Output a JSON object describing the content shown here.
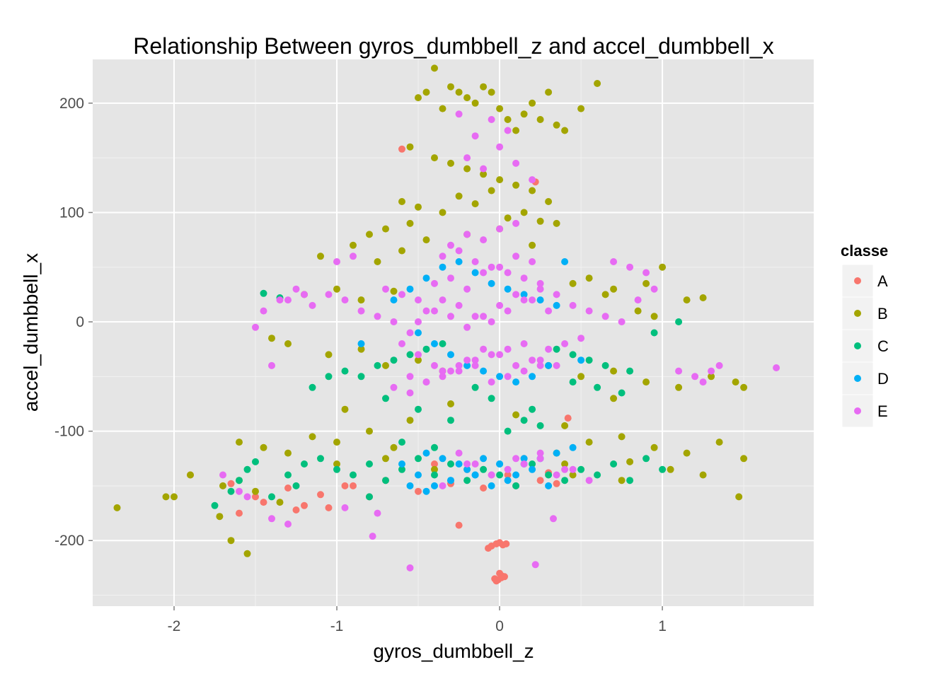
{
  "chart_data": {
    "type": "scatter",
    "title": "Relationship Between gyros_dumbbell_z and accel_dumbbell_x",
    "xlabel": "gyros_dumbbell_z",
    "ylabel": "accel_dumbbell_x",
    "xlim": [
      -2.5,
      1.93
    ],
    "ylim": [
      -260,
      240
    ],
    "x_ticks": [
      -2,
      -1,
      0,
      1
    ],
    "x_tick_labels": [
      "-2",
      "-1",
      "0",
      "1"
    ],
    "y_ticks": [
      -200,
      -100,
      0,
      100,
      200
    ],
    "y_tick_labels": [
      "-200",
      "-100",
      "0",
      "100",
      "200"
    ],
    "grid": true,
    "legend": {
      "title": "classe",
      "position": "right"
    },
    "colors": {
      "panel": "#e5e5e5",
      "grid_major": "#ffffff",
      "grid_minor": "#f2f2f2",
      "legend_key": "#f2f2f2"
    },
    "series": [
      {
        "name": "A",
        "color": "#F8766D",
        "x": [
          -0.05,
          -0.02,
          0.0,
          0.02,
          0.04,
          -0.07,
          0.01,
          -0.03,
          0.03,
          -0.01,
          0.0,
          -0.02,
          0.01,
          -0.25,
          0.22,
          -0.6,
          -1.05,
          -1.9,
          -1.65,
          -1.5,
          -1.3,
          -1.1,
          -0.9,
          -0.7,
          -0.5,
          -0.3,
          -0.1,
          0.1,
          0.25,
          0.35,
          0.42,
          -0.4,
          -0.2,
          0.05,
          0.15,
          0.3,
          -0.8,
          -1.25,
          -1.45,
          -1.6,
          -1.2,
          -0.95
        ],
        "y": [
          -205,
          -203,
          -202,
          -204,
          -203,
          -207,
          -232,
          -235,
          -233,
          -236,
          -230,
          -237,
          -234,
          -186,
          128,
          158,
          -170,
          -140,
          -148,
          -160,
          -152,
          -158,
          -150,
          -145,
          -155,
          -148,
          -152,
          -150,
          -145,
          -148,
          -88,
          -130,
          -135,
          -140,
          -125,
          -138,
          -160,
          -172,
          -165,
          -175,
          -168,
          -150
        ]
      },
      {
        "name": "B",
        "color": "#A3A500",
        "x": [
          -0.5,
          -0.45,
          -0.4,
          -0.35,
          -0.3,
          -0.25,
          -0.2,
          -0.15,
          -0.1,
          -0.05,
          0.0,
          0.05,
          0.1,
          0.15,
          0.2,
          0.25,
          0.3,
          0.35,
          0.4,
          0.5,
          0.6,
          -0.55,
          -0.4,
          -0.3,
          -0.2,
          -0.1,
          0.0,
          0.1,
          0.2,
          0.3,
          -0.6,
          -0.5,
          -0.35,
          -0.25,
          -0.15,
          -0.05,
          0.05,
          0.15,
          0.25,
          -0.8,
          -0.7,
          -0.55,
          -0.45,
          -0.2,
          0.0,
          0.2,
          0.35,
          -1.1,
          -0.9,
          -0.75,
          -0.6,
          0.55,
          0.7,
          0.9,
          1.0,
          1.15,
          1.25,
          -1.4,
          -1.2,
          -1.0,
          -0.85,
          -0.65,
          0.45,
          0.65,
          0.85,
          0.95,
          -1.3,
          -1.05,
          -0.85,
          -0.7,
          -0.5,
          -0.35,
          0.3,
          0.5,
          0.7,
          0.9,
          1.1,
          1.3,
          1.45,
          1.5,
          -1.6,
          -1.45,
          -1.3,
          -1.15,
          -1.0,
          -0.8,
          -0.65,
          0.35,
          0.55,
          0.75,
          0.95,
          1.15,
          1.35,
          -2.35,
          -2.0,
          -1.9,
          -1.7,
          -1.6,
          -1.5,
          -1.35,
          0.4,
          0.8,
          1.05,
          1.25,
          1.5,
          -0.95,
          -0.55,
          -0.3,
          0.1,
          0.4,
          0.7,
          -1.0,
          -0.7,
          -0.4,
          0.45,
          0.75,
          -1.65,
          -1.72,
          -2.05,
          -1.55,
          1.47
        ],
        "y": [
          205,
          210,
          232,
          195,
          215,
          210,
          205,
          200,
          215,
          210,
          195,
          185,
          175,
          190,
          200,
          185,
          210,
          180,
          175,
          195,
          218,
          160,
          150,
          145,
          140,
          135,
          130,
          125,
          120,
          110,
          110,
          105,
          100,
          115,
          108,
          120,
          95,
          100,
          92,
          80,
          85,
          90,
          75,
          80,
          85,
          70,
          90,
          60,
          70,
          55,
          65,
          40,
          30,
          35,
          50,
          20,
          22,
          -15,
          25,
          30,
          20,
          28,
          35,
          25,
          10,
          5,
          -20,
          -30,
          -25,
          -40,
          -35,
          -45,
          -40,
          -50,
          -45,
          -55,
          -60,
          -50,
          -55,
          -60,
          -110,
          -115,
          -120,
          -105,
          -110,
          -100,
          -115,
          -120,
          -110,
          -105,
          -115,
          -120,
          -110,
          -170,
          -160,
          -140,
          -150,
          -145,
          -155,
          -165,
          -130,
          -128,
          -135,
          -140,
          -125,
          -80,
          -90,
          -75,
          -85,
          -95,
          -70,
          -130,
          -125,
          -135,
          -140,
          -145,
          -200,
          -178,
          -160,
          -212,
          -160
        ]
      },
      {
        "name": "C",
        "color": "#00BF7D",
        "x": [
          -1.45,
          -1.35,
          -1.5,
          -1.55,
          -1.6,
          -1.4,
          -1.3,
          -1.2,
          -1.1,
          -1.0,
          -0.9,
          -0.8,
          -0.7,
          -0.6,
          -0.5,
          -0.4,
          -0.3,
          -0.2,
          -0.1,
          0.0,
          0.1,
          0.2,
          0.3,
          0.4,
          0.5,
          0.6,
          0.7,
          0.8,
          0.9,
          1.0,
          -0.95,
          -0.85,
          -0.75,
          -0.65,
          -0.55,
          -0.45,
          -0.35,
          0.35,
          0.45,
          0.55,
          0.65,
          0.8,
          0.95,
          1.1,
          -1.15,
          -1.05,
          -0.7,
          -0.5,
          -0.3,
          0.25,
          0.45,
          0.6,
          0.75,
          -1.75,
          -1.65,
          -1.25,
          -0.8,
          0.05,
          0.15,
          0.2,
          -0.15,
          -0.05,
          -0.6,
          -0.4
        ],
        "y": [
          26,
          22,
          -128,
          -135,
          -145,
          -160,
          -140,
          -130,
          -125,
          -135,
          -140,
          -130,
          -145,
          -135,
          -125,
          -140,
          -130,
          -145,
          -135,
          -140,
          -150,
          -130,
          -140,
          -145,
          -135,
          -140,
          -130,
          -145,
          -125,
          -135,
          -45,
          -50,
          -40,
          -35,
          -30,
          -25,
          -20,
          -25,
          -30,
          -35,
          -40,
          -45,
          -10,
          0,
          -60,
          -50,
          -70,
          -80,
          -90,
          -95,
          -55,
          -60,
          -65,
          -168,
          -155,
          -150,
          -160,
          -100,
          -90,
          -80,
          -60,
          -70,
          -110,
          -115
        ]
      },
      {
        "name": "D",
        "color": "#00B0F6",
        "x": [
          -0.55,
          -0.45,
          -0.35,
          -0.25,
          -0.15,
          -0.05,
          0.05,
          0.15,
          0.25,
          0.35,
          -0.5,
          -0.4,
          -0.3,
          -0.2,
          -0.1,
          0.0,
          0.1,
          0.2,
          0.3,
          -0.6,
          -0.5,
          -0.4,
          -0.3,
          -0.2,
          -0.1,
          0.0,
          0.1,
          0.2,
          -0.45,
          -0.35,
          -0.25,
          -0.15,
          -0.05,
          0.05,
          0.15,
          0.25,
          0.35,
          0.45,
          -0.55,
          -0.45,
          -0.3,
          -0.15,
          0.0,
          0.15,
          0.3,
          -0.65,
          0.4,
          -0.85,
          0.5
        ],
        "y": [
          30,
          40,
          50,
          55,
          45,
          35,
          30,
          25,
          20,
          15,
          -10,
          -20,
          -30,
          -40,
          -45,
          -50,
          -55,
          -50,
          -40,
          -130,
          -140,
          -150,
          -145,
          -135,
          -125,
          -130,
          -140,
          -135,
          -120,
          -125,
          -130,
          -140,
          -150,
          -145,
          -130,
          -125,
          -120,
          -115,
          -150,
          -155,
          -145,
          -140,
          -130,
          -125,
          -150,
          20,
          55,
          -20,
          -35
        ]
      },
      {
        "name": "E",
        "color": "#E76BF3",
        "x": [
          -1.45,
          -1.35,
          -1.25,
          -1.15,
          -1.05,
          -0.95,
          -0.85,
          -0.75,
          -0.65,
          -0.55,
          -0.45,
          -0.35,
          -0.25,
          -0.15,
          -0.05,
          0.05,
          0.15,
          0.25,
          0.35,
          0.45,
          0.55,
          0.65,
          0.75,
          0.85,
          0.95,
          -0.6,
          -0.5,
          -0.4,
          -0.3,
          -0.2,
          -0.1,
          0.0,
          0.1,
          0.2,
          0.3,
          0.4,
          0.5,
          -0.55,
          -0.45,
          -0.35,
          -0.25,
          -0.15,
          -0.05,
          0.05,
          0.15,
          0.25,
          0.35,
          -0.5,
          -0.4,
          -0.3,
          -0.2,
          -0.1,
          0.0,
          0.1,
          0.2,
          0.3,
          -0.7,
          -0.6,
          -0.5,
          -0.4,
          -0.3,
          -0.2,
          -0.1,
          0.0,
          0.1,
          0.2,
          -0.65,
          -0.55,
          -0.45,
          -0.35,
          -0.25,
          -0.15,
          -0.05,
          0.05,
          0.15,
          0.25,
          -0.3,
          -0.2,
          -0.1,
          0.0,
          0.1,
          -0.35,
          -0.25,
          -0.15,
          -0.05,
          0.05,
          0.15,
          0.25,
          -0.25,
          -0.15,
          -0.05,
          0.05,
          -0.2,
          -0.1,
          0.0,
          0.1,
          0.2,
          -0.25,
          -0.15,
          -0.05,
          0.05,
          0.15,
          0.25,
          0.35,
          0.45,
          0.55,
          -0.35,
          -0.2,
          -0.05,
          0.1,
          0.25,
          0.4,
          1.2,
          1.3,
          1.35,
          1.25,
          1.1,
          1.7,
          0.9,
          0.8,
          0.7,
          -1.5,
          -1.4,
          -1.3,
          -1.2,
          -1.0,
          -0.9,
          -0.95,
          -0.75,
          -1.7,
          -1.6,
          -1.55,
          -1.4,
          -1.3,
          -0.78,
          -0.55,
          0.22,
          0.33
        ],
        "y": [
          10,
          20,
          30,
          15,
          25,
          20,
          10,
          5,
          0,
          -10,
          10,
          20,
          15,
          5,
          0,
          10,
          20,
          30,
          25,
          15,
          10,
          5,
          0,
          20,
          30,
          -20,
          -30,
          -40,
          -45,
          -35,
          -25,
          -30,
          -40,
          -35,
          -25,
          -20,
          -15,
          -50,
          -55,
          -45,
          -40,
          -35,
          -30,
          -25,
          -20,
          -35,
          -40,
          0,
          10,
          5,
          -5,
          5,
          15,
          25,
          20,
          10,
          30,
          25,
          20,
          35,
          40,
          30,
          45,
          50,
          60,
          55,
          -60,
          -65,
          -55,
          -50,
          -45,
          -40,
          -55,
          -50,
          -45,
          -40,
          70,
          80,
          75,
          85,
          90,
          60,
          65,
          55,
          50,
          45,
          40,
          35,
          190,
          170,
          185,
          175,
          150,
          140,
          160,
          145,
          130,
          -120,
          -130,
          -140,
          -135,
          -130,
          -125,
          -140,
          -135,
          -145,
          -150,
          -130,
          -140,
          -125,
          -120,
          -135,
          -50,
          -45,
          -40,
          -55,
          -45,
          -42,
          45,
          50,
          55,
          -5,
          -40,
          20,
          25,
          55,
          60,
          -170,
          -175,
          -140,
          -155,
          -160,
          -180,
          -185,
          -196,
          -225,
          -222,
          -180
        ]
      }
    ]
  }
}
